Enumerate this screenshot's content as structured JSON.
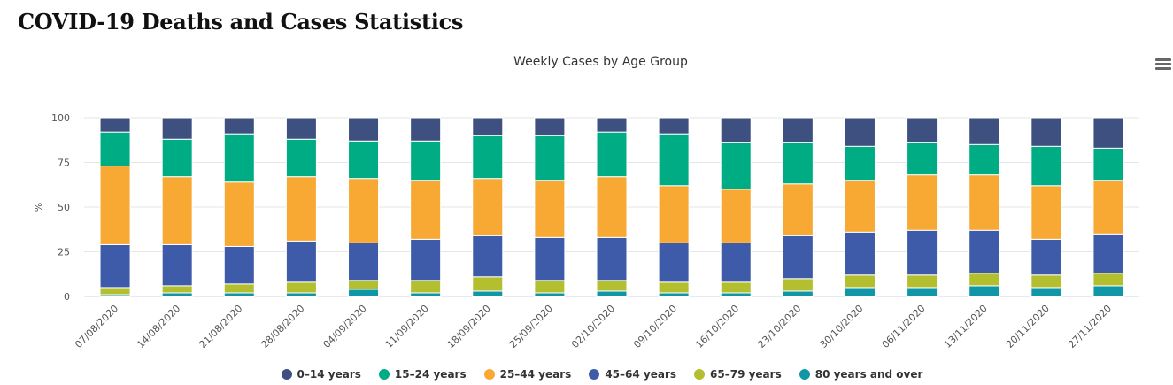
{
  "page": {
    "title": "COVID-19 Deaths and Cases Statistics"
  },
  "menu": {
    "icon": "hamburger-menu-icon"
  },
  "chart_data": {
    "type": "bar",
    "stacked": true,
    "title": "Weekly Cases by Age Group",
    "xlabel": "",
    "ylabel": "%",
    "ylim": [
      0,
      100
    ],
    "yticks": [
      0,
      25,
      50,
      75,
      100
    ],
    "grid": true,
    "legend_position": "bottom",
    "categories": [
      "07/08/2020",
      "14/08/2020",
      "21/08/2020",
      "28/08/2020",
      "04/09/2020",
      "11/09/2020",
      "18/09/2020",
      "25/09/2020",
      "02/10/2020",
      "09/10/2020",
      "16/10/2020",
      "23/10/2020",
      "30/10/2020",
      "06/11/2020",
      "13/11/2020",
      "20/11/2020",
      "27/11/2020"
    ],
    "series": [
      {
        "name": "80 years and over",
        "color": "#0f97a8",
        "values": [
          1,
          2,
          2,
          2,
          4,
          2,
          3,
          2,
          3,
          2,
          2,
          3,
          5,
          5,
          6,
          5,
          6
        ]
      },
      {
        "name": "65–79 years",
        "color": "#b3bf2e",
        "values": [
          4,
          4,
          5,
          6,
          5,
          7,
          8,
          7,
          6,
          6,
          6,
          7,
          7,
          7,
          7,
          7,
          7
        ]
      },
      {
        "name": "45–64 years",
        "color": "#3d5ba8",
        "values": [
          24,
          23,
          21,
          23,
          21,
          23,
          23,
          24,
          24,
          22,
          22,
          24,
          24,
          25,
          24,
          20,
          22
        ]
      },
      {
        "name": "25–44 years",
        "color": "#f7a934",
        "values": [
          44,
          38,
          36,
          36,
          36,
          33,
          32,
          32,
          34,
          32,
          30,
          29,
          29,
          31,
          31,
          30,
          30
        ]
      },
      {
        "name": "15–24 years",
        "color": "#00ac84",
        "values": [
          19,
          21,
          27,
          21,
          21,
          22,
          24,
          25,
          25,
          29,
          26,
          23,
          19,
          18,
          17,
          22,
          18
        ]
      },
      {
        "name": "0–14 years",
        "color": "#3e507f",
        "values": [
          8,
          12,
          9,
          12,
          13,
          13,
          10,
          10,
          8,
          9,
          14,
          14,
          16,
          14,
          15,
          16,
          17
        ]
      }
    ],
    "legend_order": [
      "0–14 years",
      "15–24 years",
      "25–44 years",
      "45–64 years",
      "65–79 years",
      "80 years and over"
    ]
  }
}
